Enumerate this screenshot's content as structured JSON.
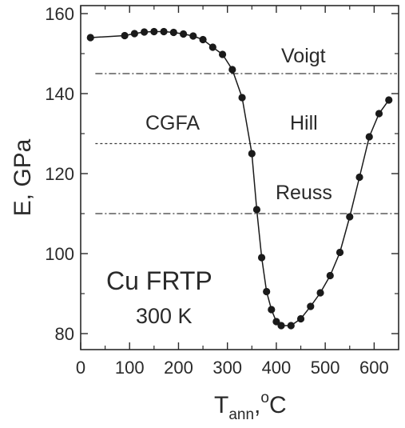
{
  "chart_data": {
    "type": "line",
    "xlim": [
      0,
      650
    ],
    "ylim": [
      76,
      162
    ],
    "x_ticks": [
      "0",
      "100",
      "200",
      "300",
      "400",
      "500",
      "600"
    ],
    "y_ticks": [
      "80",
      "100",
      "120",
      "140",
      "160"
    ],
    "xlabel": {
      "main": "T",
      "sub": "ann",
      "rest": ",",
      "sup": "o",
      "unit": "C"
    },
    "ylabel": "E, GPa",
    "grid": false,
    "series": [
      {
        "marker": "circle",
        "color": "#1a1a1a",
        "x": [
          20,
          90,
          110,
          130,
          150,
          170,
          190,
          210,
          230,
          250,
          270,
          290,
          310,
          330,
          350,
          360,
          370,
          380,
          390,
          400,
          410,
          430,
          450,
          470,
          490,
          510,
          530,
          550,
          570,
          590,
          610,
          630
        ],
        "y": [
          154,
          154.5,
          155,
          155.4,
          155.5,
          155.5,
          155.3,
          154.9,
          154.4,
          153.5,
          151.6,
          149.8,
          146,
          139,
          125,
          111,
          99,
          90.5,
          86,
          83,
          82,
          82,
          83.7,
          86.8,
          90.2,
          94.5,
          100.3,
          109.2,
          119.1,
          129.2,
          135,
          138.4
        ]
      }
    ],
    "reference_lines": [
      {
        "label": "Voigt",
        "y": 145,
        "style": "dashdot"
      },
      {
        "label": "Hill",
        "y": 127.5,
        "style": "dotted"
      },
      {
        "label": "Reuss",
        "y": 110,
        "style": "dashdot"
      }
    ],
    "annotations": [
      {
        "text": "CGFA"
      },
      {
        "text": "Cu FRTP"
      },
      {
        "text": "300 K"
      }
    ]
  }
}
